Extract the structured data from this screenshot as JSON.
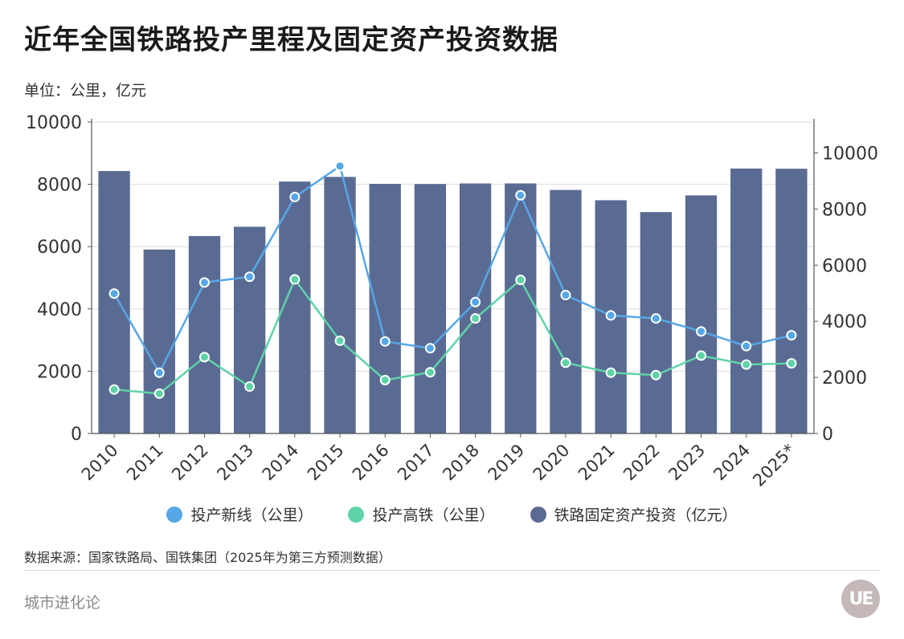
{
  "header": {
    "title": "近年全国铁路投产里程及固定资产投资数据",
    "unit": "单位：公里，亿元"
  },
  "footer": {
    "source": "数据来源：国家铁路局、国铁集团（2025年为第三方预测数据）",
    "brand": "城市进化论",
    "logo_text": "UE"
  },
  "colors": {
    "bar": "#5a6b93",
    "new_line": "#56a7e6",
    "hsr": "#5fd3a8",
    "grid": "#dedede",
    "axis": "#555555"
  },
  "chart_data": {
    "type": "bar",
    "categories": [
      "2010",
      "2011",
      "2012",
      "2013",
      "2014",
      "2015",
      "2016",
      "2017",
      "2018",
      "2019",
      "2020",
      "2021",
      "2022",
      "2023",
      "2024",
      "2025*"
    ],
    "series": [
      {
        "name": "投产新线（公里）",
        "type": "line",
        "axis": "right",
        "color": "#56a7e6",
        "values": [
          4986,
          2167,
          5382,
          5586,
          8427,
          9531,
          3281,
          3038,
          4683,
          8489,
          4933,
          4208,
          4100,
          3637,
          3113,
          3500
        ]
      },
      {
        "name": "投产高铁（公里）",
        "type": "line",
        "axis": "right",
        "color": "#5fd3a8",
        "values": [
          1568,
          1421,
          2722,
          1672,
          5491,
          3306,
          1903,
          2182,
          4100,
          5474,
          2521,
          2168,
          2082,
          2776,
          2457,
          2500
        ]
      },
      {
        "name": "铁路固定资产投资（亿元）",
        "type": "bar",
        "axis": "left",
        "color": "#5a6b93",
        "values": [
          8427,
          5906,
          6339,
          6638,
          8088,
          8238,
          8015,
          8010,
          8028,
          8029,
          7819,
          7489,
          7109,
          7645,
          8506,
          8500
        ]
      }
    ],
    "y_left": {
      "ticks": [
        0,
        2000,
        4000,
        6000,
        8000,
        10000
      ],
      "ylim": [
        0,
        10000
      ]
    },
    "y_right": {
      "ticks": [
        0,
        2000,
        4000,
        6000,
        8000,
        10000
      ],
      "ylim": [
        0,
        11100
      ]
    },
    "grid": true,
    "legend": "bottom"
  }
}
